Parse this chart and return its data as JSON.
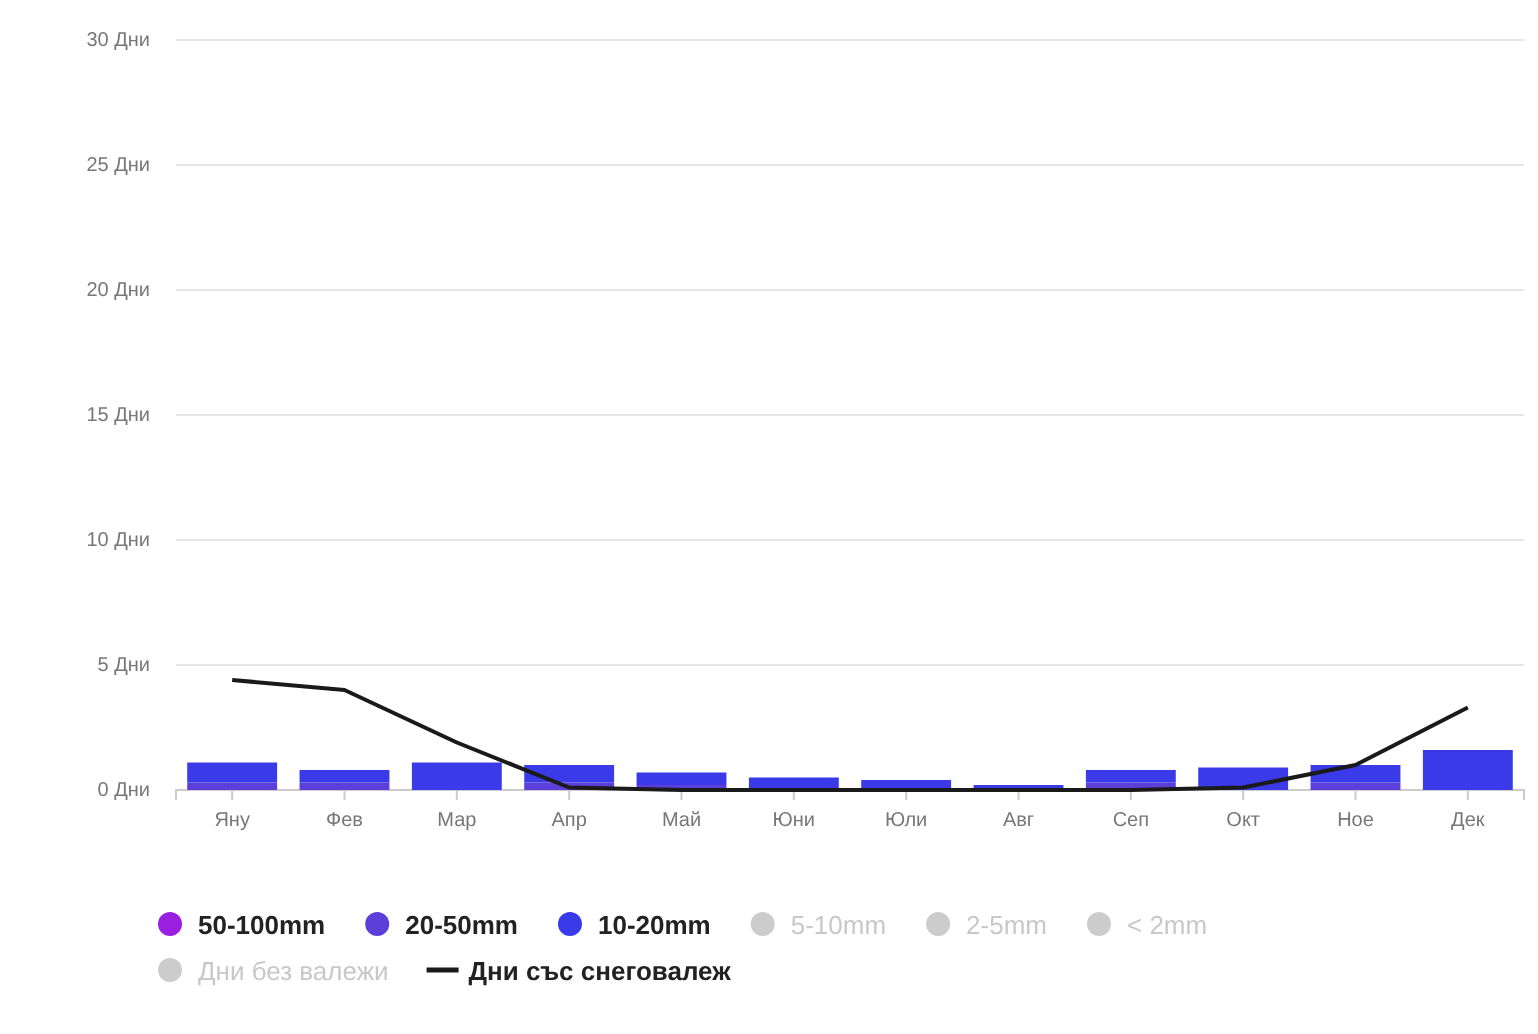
{
  "chart_data": {
    "type": "bar",
    "stacked": true,
    "categories": [
      "Яну",
      "Фев",
      "Мар",
      "Апр",
      "Май",
      "Юни",
      "Юли",
      "Авг",
      "Сеп",
      "Окт",
      "Ное",
      "Дек"
    ],
    "series": [
      {
        "name": "50-100mm",
        "color": "#9b1fe0",
        "values": [
          0,
          0,
          0,
          0,
          0,
          0,
          0,
          0,
          0,
          0,
          0,
          0
        ]
      },
      {
        "name": "20-50mm",
        "color": "#5b3fd8",
        "values": [
          0.3,
          0.3,
          0,
          0.3,
          0.2,
          0,
          0,
          0,
          0.3,
          0,
          0.3,
          0
        ]
      },
      {
        "name": "10-20mm",
        "color": "#3a3ae8",
        "values": [
          0.8,
          0.5,
          1.1,
          0.7,
          0.5,
          0.5,
          0.4,
          0.2,
          0.5,
          0.9,
          0.7,
          1.6
        ]
      },
      {
        "name": "5-10mm",
        "color": "#cccccc",
        "values": [
          null,
          null,
          null,
          null,
          null,
          null,
          null,
          null,
          null,
          null,
          null,
          null
        ]
      },
      {
        "name": "2-5mm",
        "color": "#cccccc",
        "values": [
          null,
          null,
          null,
          null,
          null,
          null,
          null,
          null,
          null,
          null,
          null,
          null
        ]
      },
      {
        "name": "< 2mm",
        "color": "#cccccc",
        "values": [
          null,
          null,
          null,
          null,
          null,
          null,
          null,
          null,
          null,
          null,
          null,
          null
        ]
      },
      {
        "name": "Дни без валежи",
        "color": "#cccccc",
        "values": [
          null,
          null,
          null,
          null,
          null,
          null,
          null,
          null,
          null,
          null,
          null,
          null
        ]
      },
      {
        "name": "Дни със снеговалеж",
        "type": "line",
        "color": "#1a1a1a",
        "values": [
          4.4,
          4.0,
          1.9,
          0.1,
          0,
          0,
          0,
          0,
          0,
          0.1,
          1.0,
          3.3
        ]
      }
    ],
    "ylim": [
      0,
      30
    ],
    "yticks": [
      {
        "value": 0,
        "label": "0 Дни"
      },
      {
        "value": 5,
        "label": "5 Дни"
      },
      {
        "value": 10,
        "label": "10 Дни"
      },
      {
        "value": 15,
        "label": "15 Дни"
      },
      {
        "value": 20,
        "label": "20 Дни"
      },
      {
        "value": 25,
        "label": "25 Дни"
      },
      {
        "value": 30,
        "label": "30 Дни"
      }
    ],
    "grid": "y",
    "legend": "bottom",
    "line_style": "solid",
    "marker": "none"
  }
}
